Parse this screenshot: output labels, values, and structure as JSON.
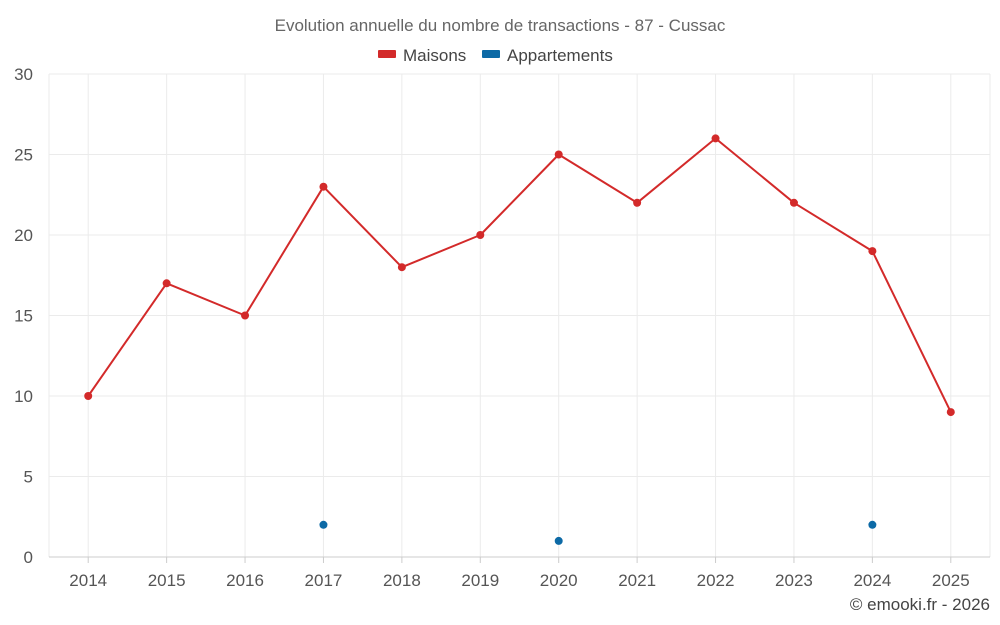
{
  "chart_data": {
    "type": "line",
    "title": "Evolution annuelle du nombre de transactions - 87 - Cussac",
    "x": [
      "2014",
      "2015",
      "2016",
      "2017",
      "2018",
      "2019",
      "2020",
      "2021",
      "2022",
      "2023",
      "2024",
      "2025"
    ],
    "ylim": [
      0,
      30
    ],
    "yticks": [
      "0",
      "5",
      "10",
      "15",
      "20",
      "25",
      "30"
    ],
    "grid": true,
    "legend_position": "top-center",
    "series": [
      {
        "name": "Maisons",
        "color": "#d32a2a",
        "style": "line",
        "values": [
          10,
          17,
          15,
          23,
          18,
          20,
          25,
          22,
          26,
          22,
          19,
          9
        ]
      },
      {
        "name": "Appartements",
        "color": "#0d6aa6",
        "style": "points",
        "values": [
          null,
          null,
          null,
          2,
          null,
          null,
          1,
          null,
          null,
          null,
          2,
          null
        ]
      }
    ]
  },
  "copyright": "© emooki.fr - 2026"
}
